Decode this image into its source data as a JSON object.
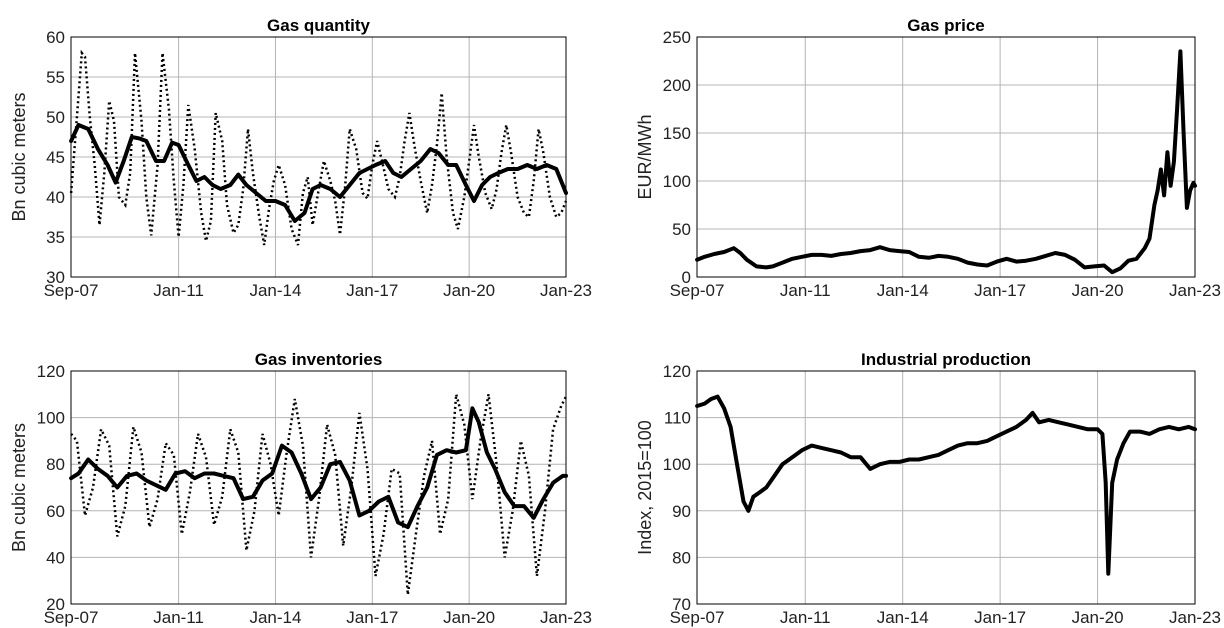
{
  "chart_data": [
    {
      "type": "line",
      "title": "Gas quantity",
      "ylabel": "Bn cubic meters",
      "xlabel": "",
      "x_tick_labels": [
        "Sep-07",
        "Jan-11",
        "Jan-14",
        "Jan-17",
        "Jan-20",
        "Jan-23"
      ],
      "x_tick_values": [
        2007.667,
        2011.0,
        2014.0,
        2017.0,
        2020.0,
        2023.0
      ],
      "xlim": [
        2007.667,
        2023.0
      ],
      "ylim": [
        30,
        60
      ],
      "y_ticks": [
        30,
        35,
        40,
        45,
        50,
        55,
        60
      ],
      "grid": true,
      "series": [
        {
          "style": "dotted",
          "x": [
            2007.67,
            2008.0,
            2008.1,
            2008.25,
            2008.4,
            2008.55,
            2008.7,
            2008.85,
            2009.0,
            2009.15,
            2009.35,
            2009.5,
            2009.65,
            2009.85,
            2010.0,
            2010.15,
            2010.35,
            2010.5,
            2010.7,
            2010.85,
            2011.0,
            2011.15,
            2011.3,
            2011.5,
            2011.7,
            2011.85,
            2012.0,
            2012.15,
            2012.35,
            2012.5,
            2012.7,
            2012.85,
            2013.0,
            2013.15,
            2013.3,
            2013.5,
            2013.65,
            2013.8,
            2013.95,
            2014.1,
            2014.3,
            2014.5,
            2014.7,
            2014.85,
            2015.0,
            2015.15,
            2015.3,
            2015.5,
            2015.7,
            2015.85,
            2016.0,
            2016.15,
            2016.3,
            2016.5,
            2016.7,
            2016.85,
            2017.0,
            2017.15,
            2017.3,
            2017.5,
            2017.7,
            2017.85,
            2018.0,
            2018.15,
            2018.3,
            2018.5,
            2018.7,
            2018.85,
            2019.0,
            2019.15,
            2019.3,
            2019.5,
            2019.65,
            2019.85,
            2020.0,
            2020.15,
            2020.3,
            2020.5,
            2020.7,
            2020.85,
            2021.0,
            2021.15,
            2021.3,
            2021.5,
            2021.7,
            2021.85,
            2022.0,
            2022.15,
            2022.3,
            2022.5,
            2022.7,
            2022.85,
            2023.0
          ],
          "y": [
            40.5,
            58.0,
            57.5,
            50.0,
            44.0,
            36.5,
            43.0,
            52.0,
            49.5,
            40.0,
            39.0,
            43.0,
            58.0,
            49.5,
            40.0,
            35.2,
            44.0,
            58.0,
            51.0,
            42.0,
            35.0,
            41.5,
            51.5,
            46.0,
            38.0,
            34.5,
            37.0,
            50.5,
            47.0,
            39.0,
            35.5,
            36.5,
            41.0,
            48.5,
            43.0,
            37.5,
            34.0,
            38.5,
            42.0,
            44.0,
            41.5,
            36.0,
            34.0,
            40.5,
            42.5,
            36.5,
            40.0,
            44.5,
            42.0,
            39.5,
            35.3,
            41.0,
            48.5,
            46.0,
            40.5,
            39.8,
            44.0,
            47.0,
            44.5,
            41.0,
            40.0,
            42.5,
            47.0,
            50.5,
            46.5,
            42.0,
            38.0,
            41.5,
            46.5,
            53.0,
            45.0,
            38.0,
            36.0,
            40.0,
            44.5,
            49.0,
            45.0,
            40.5,
            38.5,
            41.0,
            45.5,
            49.0,
            45.5,
            40.0,
            38.0,
            37.5,
            42.0,
            48.5,
            45.5,
            40.0,
            37.5,
            38.0,
            39.5
          ]
        },
        {
          "style": "solid",
          "x": [
            2007.67,
            2007.9,
            2008.2,
            2008.5,
            2008.8,
            2009.05,
            2009.3,
            2009.55,
            2009.8,
            2010.0,
            2010.3,
            2010.55,
            2010.8,
            2011.0,
            2011.3,
            2011.55,
            2011.8,
            2012.05,
            2012.3,
            2012.6,
            2012.85,
            2013.1,
            2013.4,
            2013.7,
            2014.0,
            2014.3,
            2014.6,
            2014.9,
            2015.15,
            2015.4,
            2015.7,
            2016.0,
            2016.3,
            2016.6,
            2016.85,
            2017.1,
            2017.4,
            2017.65,
            2017.9,
            2018.2,
            2018.5,
            2018.8,
            2019.05,
            2019.35,
            2019.6,
            2019.9,
            2020.15,
            2020.4,
            2020.65,
            2020.9,
            2021.2,
            2021.5,
            2021.8,
            2022.1,
            2022.4,
            2022.7,
            2023.0
          ],
          "y": [
            47.0,
            49.0,
            48.5,
            46.0,
            44.0,
            41.8,
            44.5,
            47.5,
            47.3,
            47.0,
            44.5,
            44.5,
            46.8,
            46.5,
            44.0,
            42.0,
            42.5,
            41.5,
            41.0,
            41.5,
            42.8,
            41.5,
            40.5,
            39.5,
            39.5,
            39.0,
            37.0,
            38.0,
            41.0,
            41.5,
            41.0,
            40.0,
            41.5,
            43.0,
            43.5,
            44.0,
            44.5,
            43.0,
            42.5,
            43.5,
            44.5,
            46.0,
            45.5,
            44.0,
            44.0,
            41.5,
            39.5,
            41.5,
            42.5,
            43.0,
            43.5,
            43.5,
            44.0,
            43.5,
            44.0,
            43.5,
            40.5
          ]
        }
      ]
    },
    {
      "type": "line",
      "title": "Gas price",
      "ylabel": "EUR/MWh",
      "xlabel": "",
      "x_tick_labels": [
        "Sep-07",
        "Jan-11",
        "Jan-14",
        "Jan-17",
        "Jan-20",
        "Jan-23"
      ],
      "x_tick_values": [
        2007.667,
        2011.0,
        2014.0,
        2017.0,
        2020.0,
        2023.0
      ],
      "xlim": [
        2007.667,
        2023.0
      ],
      "ylim": [
        0,
        250
      ],
      "y_ticks": [
        0,
        50,
        100,
        150,
        200,
        250
      ],
      "grid": true,
      "series": [
        {
          "style": "solid",
          "x": [
            2007.67,
            2007.9,
            2008.2,
            2008.5,
            2008.8,
            2009.0,
            2009.2,
            2009.5,
            2009.8,
            2010.0,
            2010.3,
            2010.6,
            2010.9,
            2011.2,
            2011.5,
            2011.8,
            2012.1,
            2012.4,
            2012.7,
            2013.0,
            2013.3,
            2013.6,
            2013.9,
            2014.2,
            2014.5,
            2014.8,
            2015.1,
            2015.4,
            2015.7,
            2016.0,
            2016.3,
            2016.6,
            2016.9,
            2017.2,
            2017.5,
            2017.8,
            2018.1,
            2018.4,
            2018.7,
            2019.0,
            2019.3,
            2019.6,
            2019.9,
            2020.2,
            2020.45,
            2020.7,
            2020.95,
            2021.2,
            2021.45,
            2021.6,
            2021.75,
            2021.85,
            2021.95,
            2022.05,
            2022.15,
            2022.25,
            2022.35,
            2022.45,
            2022.55,
            2022.65,
            2022.75,
            2022.85,
            2022.95,
            2023.0
          ],
          "y": [
            18,
            21,
            24,
            26,
            30,
            25,
            18,
            11,
            10,
            11,
            15,
            19,
            21,
            23,
            23,
            22,
            24,
            25,
            27,
            28,
            31,
            28,
            27,
            26,
            21,
            20,
            22,
            21,
            19,
            15,
            13,
            12,
            16,
            19,
            16,
            17,
            19,
            22,
            25,
            23,
            18,
            10,
            11,
            12,
            5,
            9,
            17,
            19,
            30,
            40,
            75,
            90,
            112,
            85,
            130,
            95,
            120,
            175,
            235,
            150,
            72,
            90,
            98,
            95
          ]
        }
      ]
    },
    {
      "type": "line",
      "title": "Gas inventories",
      "ylabel": "Bn cubic meters",
      "xlabel": "",
      "x_tick_labels": [
        "Sep-07",
        "Jan-11",
        "Jan-14",
        "Jan-17",
        "Jan-20",
        "Jan-23"
      ],
      "x_tick_values": [
        2007.667,
        2011.0,
        2014.0,
        2017.0,
        2020.0,
        2023.0
      ],
      "xlim": [
        2007.667,
        2023.0
      ],
      "ylim": [
        20,
        120
      ],
      "y_ticks": [
        20,
        40,
        60,
        80,
        100,
        120
      ],
      "grid": true,
      "series": [
        {
          "style": "dotted",
          "x": [
            2007.67,
            2007.85,
            2008.1,
            2008.35,
            2008.6,
            2008.85,
            2009.1,
            2009.35,
            2009.6,
            2009.85,
            2010.1,
            2010.35,
            2010.6,
            2010.85,
            2011.1,
            2011.35,
            2011.6,
            2011.85,
            2012.1,
            2012.35,
            2012.6,
            2012.85,
            2013.1,
            2013.35,
            2013.6,
            2013.85,
            2014.1,
            2014.35,
            2014.6,
            2014.85,
            2015.1,
            2015.35,
            2015.6,
            2015.85,
            2016.1,
            2016.35,
            2016.6,
            2016.85,
            2017.1,
            2017.35,
            2017.6,
            2017.85,
            2018.1,
            2018.35,
            2018.6,
            2018.85,
            2019.1,
            2019.35,
            2019.6,
            2019.85,
            2020.1,
            2020.35,
            2020.6,
            2020.85,
            2021.1,
            2021.35,
            2021.6,
            2021.85,
            2022.1,
            2022.35,
            2022.6,
            2022.85,
            2023.0
          ],
          "y": [
            93,
            90,
            58,
            70,
            95,
            88,
            49,
            62,
            96,
            85,
            53,
            65,
            89,
            84,
            50,
            68,
            93,
            83,
            54,
            66,
            95,
            85,
            43,
            60,
            93,
            80,
            58,
            85,
            108,
            88,
            40,
            65,
            97,
            84,
            45,
            70,
            102,
            78,
            32,
            50,
            78,
            76,
            24,
            50,
            75,
            90,
            50,
            65,
            110,
            97,
            65,
            90,
            110,
            80,
            40,
            60,
            90,
            75,
            32,
            60,
            95,
            105,
            109
          ]
        },
        {
          "style": "solid",
          "x": [
            2007.67,
            2007.9,
            2008.2,
            2008.5,
            2008.8,
            2009.1,
            2009.4,
            2009.7,
            2010.0,
            2010.3,
            2010.6,
            2010.9,
            2011.2,
            2011.5,
            2011.8,
            2012.1,
            2012.4,
            2012.7,
            2013.0,
            2013.3,
            2013.6,
            2013.9,
            2014.2,
            2014.5,
            2014.8,
            2015.1,
            2015.4,
            2015.7,
            2016.0,
            2016.3,
            2016.6,
            2016.9,
            2017.2,
            2017.5,
            2017.8,
            2018.1,
            2018.4,
            2018.7,
            2019.0,
            2019.3,
            2019.6,
            2019.9,
            2020.1,
            2020.3,
            2020.55,
            2020.8,
            2021.1,
            2021.4,
            2021.7,
            2022.0,
            2022.3,
            2022.6,
            2022.9,
            2023.0
          ],
          "y": [
            74,
            76,
            82,
            78,
            75,
            70,
            75,
            76,
            73,
            71,
            69,
            76,
            77,
            74,
            76,
            76,
            75,
            74,
            65,
            66,
            73,
            76,
            88,
            85,
            76,
            65,
            70,
            80,
            81,
            73,
            58,
            60,
            64,
            66,
            55,
            53,
            62,
            70,
            84,
            86,
            85,
            86,
            104,
            98,
            85,
            78,
            68,
            62,
            62,
            57,
            65,
            72,
            75,
            75
          ]
        }
      ]
    },
    {
      "type": "line",
      "title": "Industrial production",
      "ylabel": "Index, 2015=100",
      "xlabel": "",
      "x_tick_labels": [
        "Sep-07",
        "Jan-11",
        "Jan-14",
        "Jan-17",
        "Jan-20",
        "Jan-23"
      ],
      "x_tick_values": [
        2007.667,
        2011.0,
        2014.0,
        2017.0,
        2020.0,
        2023.0
      ],
      "xlim": [
        2007.667,
        2023.0
      ],
      "ylim": [
        70,
        120
      ],
      "y_ticks": [
        70,
        80,
        90,
        100,
        110,
        120
      ],
      "grid": true,
      "series": [
        {
          "style": "solid",
          "x": [
            2007.67,
            2007.9,
            2008.1,
            2008.3,
            2008.5,
            2008.7,
            2008.9,
            2009.1,
            2009.25,
            2009.4,
            2009.6,
            2009.8,
            2010.0,
            2010.3,
            2010.6,
            2010.9,
            2011.2,
            2011.5,
            2011.8,
            2012.1,
            2012.4,
            2012.7,
            2013.0,
            2013.3,
            2013.6,
            2013.9,
            2014.2,
            2014.5,
            2014.8,
            2015.1,
            2015.4,
            2015.7,
            2016.0,
            2016.3,
            2016.6,
            2016.9,
            2017.2,
            2017.5,
            2017.8,
            2018.0,
            2018.2,
            2018.5,
            2018.8,
            2019.1,
            2019.4,
            2019.7,
            2020.0,
            2020.15,
            2020.25,
            2020.33,
            2020.45,
            2020.6,
            2020.8,
            2021.0,
            2021.3,
            2021.6,
            2021.9,
            2022.2,
            2022.5,
            2022.8,
            2023.0
          ],
          "y": [
            112.5,
            113.0,
            114.0,
            114.5,
            112.0,
            108.0,
            100.0,
            92.0,
            90.0,
            93.0,
            94.0,
            95.0,
            97.0,
            100.0,
            101.5,
            103.0,
            104.0,
            103.5,
            103.0,
            102.5,
            101.5,
            101.5,
            99.0,
            100.0,
            100.5,
            100.5,
            101.0,
            101.0,
            101.5,
            102.0,
            103.0,
            104.0,
            104.5,
            104.5,
            105.0,
            106.0,
            107.0,
            108.0,
            109.5,
            111.0,
            109.0,
            109.5,
            109.0,
            108.5,
            108.0,
            107.5,
            107.5,
            106.5,
            96.0,
            76.5,
            96.0,
            101.0,
            104.5,
            107.0,
            107.0,
            106.5,
            107.5,
            108.0,
            107.5,
            108.0,
            107.5
          ]
        }
      ]
    }
  ]
}
